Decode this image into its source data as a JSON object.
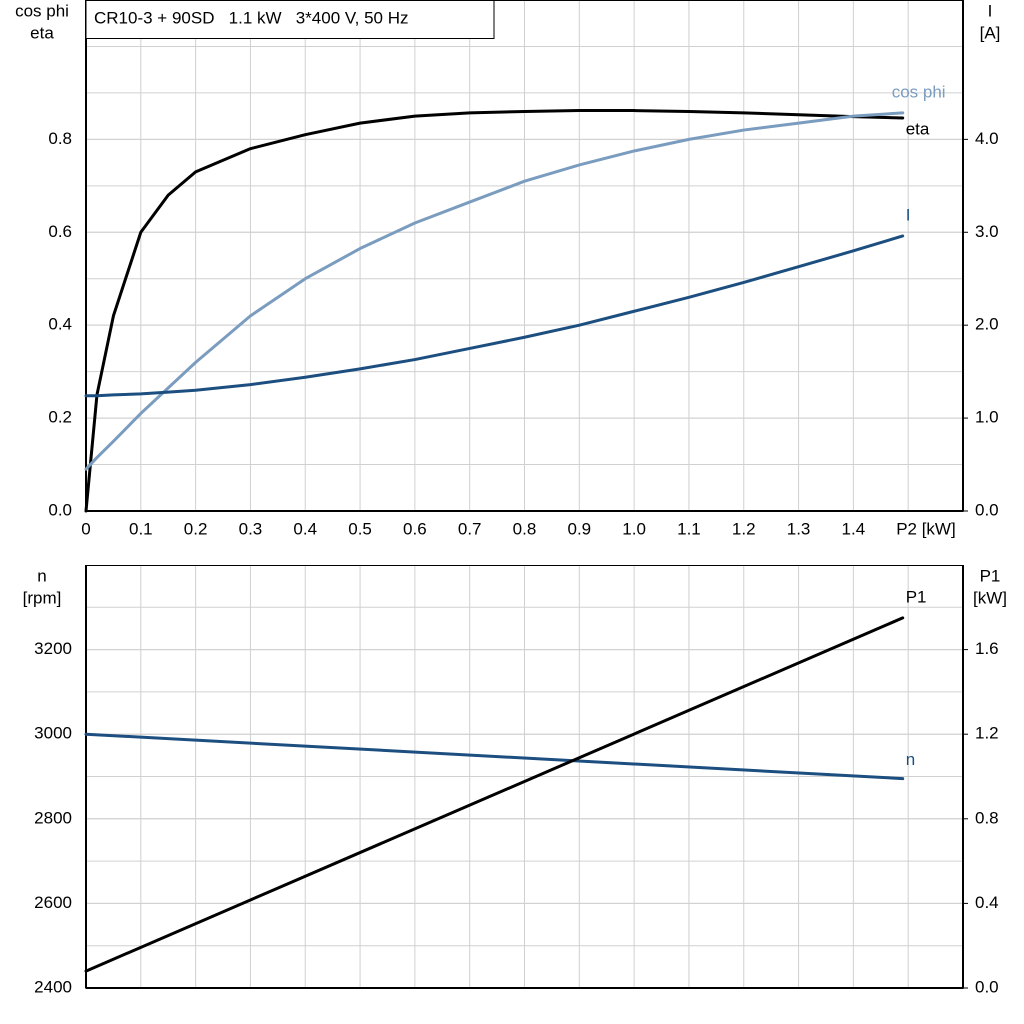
{
  "chart_data": [
    {
      "type": "line",
      "title": "CR10-3 + 90SD   1.1 kW   3*400 V, 50 Hz",
      "y_label": [
        "cos phi",
        "eta"
      ],
      "y2_label": [
        "I",
        "[A]"
      ],
      "x_label": "P2 [kW]",
      "x": [
        0,
        0.02,
        0.05,
        0.1,
        0.15,
        0.2,
        0.3,
        0.4,
        0.5,
        0.6,
        0.7,
        0.8,
        0.9,
        1.0,
        1.1,
        1.2,
        1.3,
        1.4,
        1.49
      ],
      "series": [
        {
          "name": "eta",
          "color": "#000000",
          "values": [
            0,
            0.25,
            0.42,
            0.6,
            0.68,
            0.73,
            0.78,
            0.81,
            0.835,
            0.85,
            0.857,
            0.86,
            0.862,
            0.862,
            0.86,
            0.857,
            0.853,
            0.849,
            0.846
          ]
        },
        {
          "name": "cos phi",
          "color": "#7a9cbf",
          "values": [
            0.09,
            0.115,
            0.15,
            0.21,
            0.265,
            0.32,
            0.42,
            0.5,
            0.565,
            0.62,
            0.665,
            0.71,
            0.745,
            0.775,
            0.8,
            0.82,
            0.835,
            0.85,
            0.857
          ]
        },
        {
          "name": "I",
          "color": "#1c4f80",
          "axis": "y2",
          "values": [
            1.24,
            1.24,
            1.25,
            1.26,
            1.28,
            1.3,
            1.36,
            1.44,
            1.53,
            1.63,
            1.75,
            1.87,
            2.0,
            2.15,
            2.3,
            2.46,
            2.63,
            2.8,
            2.96
          ]
        }
      ],
      "xlim": [
        0,
        1.6
      ],
      "xticks": [
        0,
        0.1,
        0.2,
        0.3,
        0.4,
        0.5,
        0.6,
        0.7,
        0.8,
        0.9,
        {
          "value": 1,
          "label": "1.0"
        },
        1.1,
        1.2,
        1.3,
        1.4
      ],
      "x_tick_labels": true,
      "ylim": [
        0,
        1.1
      ],
      "yticks": [
        {
          "value": 0,
          "label": "0.0"
        },
        0.2,
        0.4,
        0.6,
        0.8
      ],
      "y2lim": [
        0,
        5.5
      ],
      "y2ticks": [
        {
          "value": 0,
          "label": "0.0"
        },
        {
          "value": 1,
          "label": "1.0"
        },
        {
          "value": 2,
          "label": "2.0"
        },
        {
          "value": 3,
          "label": "3.0"
        },
        {
          "value": 4,
          "label": "4.0"
        }
      ],
      "grid": true
    },
    {
      "type": "line",
      "y_label": [
        "n",
        "[rpm]"
      ],
      "y2_label": [
        "P1",
        "[kW]"
      ],
      "x": [
        0,
        1.49
      ],
      "series": [
        {
          "name": "n",
          "color": "#1c4f80",
          "values": [
            3000,
            2895
          ]
        },
        {
          "name": "P1",
          "color": "#000000",
          "axis": "y2",
          "values": [
            0.08,
            1.75
          ]
        }
      ],
      "xlim": [
        0,
        1.6
      ],
      "xticks": [
        0,
        0.1,
        0.2,
        0.3,
        0.4,
        0.5,
        0.6,
        0.7,
        0.8,
        0.9,
        1,
        1.1,
        1.2,
        1.3,
        1.4
      ],
      "x_tick_labels": false,
      "ylim": [
        2400,
        3400
      ],
      "yticks": [
        2400,
        2600,
        2800,
        3000,
        3200
      ],
      "y2lim": [
        0,
        2
      ],
      "y2ticks": [
        {
          "value": 0,
          "label": "0.0"
        },
        0.4,
        0.8,
        1.2,
        1.6
      ],
      "grid": true
    }
  ]
}
